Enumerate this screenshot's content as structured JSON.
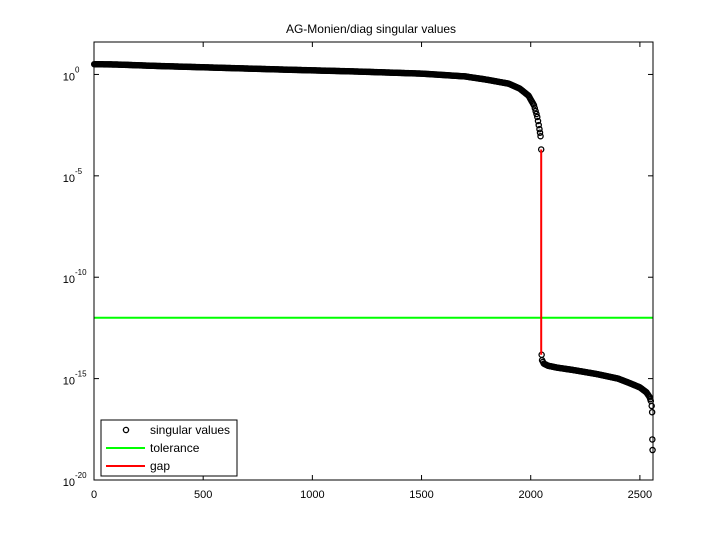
{
  "chart_data": {
    "type": "scatter",
    "title": "AG-Monien/diag singular values",
    "xlabel": "",
    "ylabel": "",
    "xlim": [
      0,
      2560
    ],
    "ylim_log10": [
      -20,
      1.6
    ],
    "y_scale": "log",
    "grid": false,
    "legend_position": "bottom-left",
    "x_ticks": [
      0,
      500,
      1000,
      1500,
      2000,
      2500
    ],
    "x_tick_labels": [
      "0",
      "500",
      "1000",
      "1500",
      "2000",
      "2500"
    ],
    "y_ticks": [
      {
        "base": "10",
        "exp": "0",
        "log10": 0
      },
      {
        "base": "10",
        "exp": "-5",
        "log10": -5
      },
      {
        "base": "10",
        "exp": "-10",
        "log10": -10
      },
      {
        "base": "10",
        "exp": "-15",
        "log10": -15
      },
      {
        "base": "10",
        "exp": "-20",
        "log10": -20
      }
    ],
    "series": [
      {
        "name": "singular values",
        "marker": "circle",
        "color": "#000000",
        "segments": [
          [
            [
              1,
              3.2
            ],
            [
              100,
              3.1
            ],
            [
              300,
              2.6
            ],
            [
              600,
              2.1
            ],
            [
              900,
              1.7
            ],
            [
              1200,
              1.4
            ],
            [
              1500,
              1.1
            ],
            [
              1700,
              0.8
            ],
            [
              1800,
              0.55
            ],
            [
              1900,
              0.35
            ],
            [
              1950,
              0.2
            ],
            [
              1990,
              0.09
            ],
            [
              2015,
              0.03
            ],
            [
              2030,
              0.008
            ],
            [
              2040,
              0.002
            ],
            [
              2045,
              0.0009
            ],
            [
              2048,
              0.0002
            ]
          ],
          [
            [
              2050,
              1.5e-14
            ],
            [
              2052,
              8.1e-15
            ],
            [
              2060,
              5.5e-15
            ],
            [
              2080,
              4.3e-15
            ],
            [
              2120,
              3.5e-15
            ],
            [
              2200,
              2.6e-15
            ],
            [
              2300,
              1.7e-15
            ],
            [
              2400,
              1e-15
            ],
            [
              2450,
              6.2e-16
            ],
            [
              2500,
              3.7e-16
            ],
            [
              2530,
              2.1e-16
            ],
            [
              2545,
              1.2e-16
            ],
            [
              2550,
              7.9e-17
            ],
            [
              2554,
              4.5e-17
            ],
            [
              2556,
              2.2e-17
            ],
            [
              2557,
              1e-18
            ]
          ]
        ],
        "isolated_points": [
          [
            2558,
            3e-19
          ]
        ]
      },
      {
        "name": "tolerance",
        "type": "hline",
        "color": "#00ff00",
        "y": 1e-12
      },
      {
        "name": "gap",
        "type": "vline",
        "color": "#ff0000",
        "x": 2048,
        "y_from": 0.0002,
        "y_to": 1.5e-14
      }
    ]
  }
}
